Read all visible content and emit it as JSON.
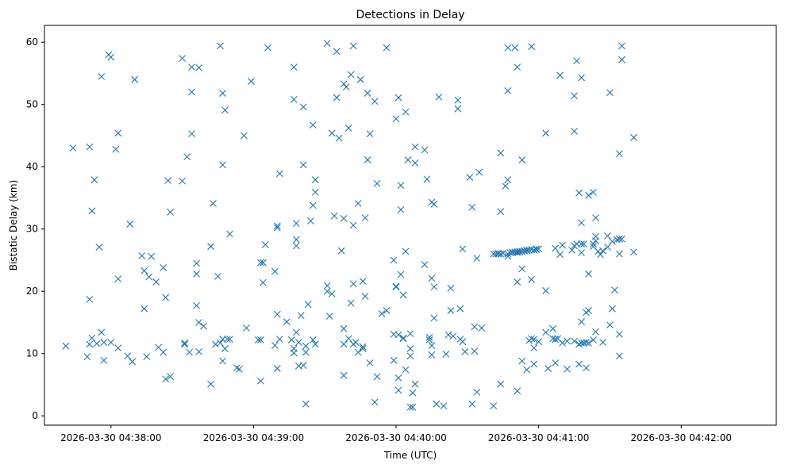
{
  "chart_data": {
    "type": "scatter",
    "title": "Detections in Delay",
    "xlabel": "Time (UTC)",
    "ylabel": "Bistatic Delay (km)",
    "marker": "x",
    "color": "#1f77b4",
    "grid": false,
    "x_unit": "time-of-day",
    "xlim": [
      "04:37:32",
      "04:42:40"
    ],
    "ylim": [
      -1.5,
      62.7
    ],
    "x_ticks": [
      {
        "value": "04:38:00",
        "label": "2026-03-30 04:38:00"
      },
      {
        "value": "04:39:00",
        "label": "2026-03-30 04:39:00"
      },
      {
        "value": "04:40:00",
        "label": "2026-03-30 04:40:00"
      },
      {
        "value": "04:41:00",
        "label": "2026-03-30 04:41:00"
      },
      {
        "value": "04:42:00",
        "label": "2026-03-30 04:42:00"
      }
    ],
    "y_ticks": [
      0,
      10,
      20,
      30,
      40,
      50,
      60
    ],
    "points": [
      [
        "04:37:41",
        11.2
      ],
      [
        "04:37:44",
        43.0
      ],
      [
        "04:37:50",
        9.5
      ],
      [
        "04:37:51",
        11.5
      ],
      [
        "04:37:51",
        43.2
      ],
      [
        "04:37:51",
        18.7
      ],
      [
        "04:37:52",
        12.5
      ],
      [
        "04:37:52",
        32.9
      ],
      [
        "04:37:53",
        37.9
      ],
      [
        "04:37:54",
        11.6
      ],
      [
        "04:37:55",
        27.1
      ],
      [
        "04:37:56",
        13.4
      ],
      [
        "04:37:56",
        54.5
      ],
      [
        "04:37:57",
        11.8
      ],
      [
        "04:37:57",
        8.9
      ],
      [
        "04:37:59",
        58.0
      ],
      [
        "04:38:00",
        57.6
      ],
      [
        "04:38:00",
        11.8
      ],
      [
        "04:38:02",
        42.8
      ],
      [
        "04:38:03",
        45.4
      ],
      [
        "04:38:03",
        22.0
      ],
      [
        "04:38:03",
        10.9
      ],
      [
        "04:38:07",
        9.6
      ],
      [
        "04:38:08",
        30.8
      ],
      [
        "04:38:09",
        8.7
      ],
      [
        "04:38:10",
        54.0
      ],
      [
        "04:38:13",
        25.7
      ],
      [
        "04:38:14",
        17.2
      ],
      [
        "04:38:14",
        23.3
      ],
      [
        "04:38:15",
        9.5
      ],
      [
        "04:38:16",
        22.3
      ],
      [
        "04:38:17",
        25.6
      ],
      [
        "04:38:19",
        21.5
      ],
      [
        "04:38:20",
        11.0
      ],
      [
        "04:38:22",
        10.2
      ],
      [
        "04:38:22",
        23.8
      ],
      [
        "04:38:23",
        19.0
      ],
      [
        "04:38:23",
        5.9
      ],
      [
        "04:38:24",
        37.8
      ],
      [
        "04:38:25",
        6.3
      ],
      [
        "04:38:25",
        32.7
      ],
      [
        "04:38:30",
        57.4
      ],
      [
        "04:38:30",
        37.7
      ],
      [
        "04:38:31",
        11.7
      ],
      [
        "04:38:31",
        11.5
      ],
      [
        "04:38:32",
        41.6
      ],
      [
        "04:38:33",
        10.2
      ],
      [
        "04:38:34",
        52.0
      ],
      [
        "04:38:34",
        56.0
      ],
      [
        "04:38:34",
        45.3
      ],
      [
        "04:38:36",
        17.7
      ],
      [
        "04:38:36",
        24.5
      ],
      [
        "04:38:36",
        22.8
      ],
      [
        "04:38:37",
        55.9
      ],
      [
        "04:38:37",
        15.0
      ],
      [
        "04:38:37",
        10.3
      ],
      [
        "04:38:39",
        14.4
      ],
      [
        "04:38:42",
        27.2
      ],
      [
        "04:38:42",
        5.1
      ],
      [
        "04:38:43",
        34.1
      ],
      [
        "04:38:44",
        11.5
      ],
      [
        "04:38:45",
        22.4
      ],
      [
        "04:38:46",
        59.4
      ],
      [
        "04:38:46",
        11.7
      ],
      [
        "04:38:47",
        51.8
      ],
      [
        "04:38:47",
        12.3
      ],
      [
        "04:38:47",
        8.8
      ],
      [
        "04:38:47",
        40.3
      ],
      [
        "04:38:48",
        49.1
      ],
      [
        "04:38:48",
        10.8
      ],
      [
        "04:38:49",
        12.3
      ],
      [
        "04:38:50",
        29.2
      ],
      [
        "04:38:50",
        12.3
      ],
      [
        "04:38:53",
        7.7
      ],
      [
        "04:38:54",
        7.5
      ],
      [
        "04:38:56",
        45.0
      ],
      [
        "04:38:57",
        14.1
      ],
      [
        "04:38:59",
        53.7
      ],
      [
        "04:39:02",
        12.2
      ],
      [
        "04:39:03",
        24.6
      ],
      [
        "04:39:03",
        5.6
      ],
      [
        "04:39:03",
        12.2
      ],
      [
        "04:39:04",
        21.4
      ],
      [
        "04:39:04",
        24.6
      ],
      [
        "04:39:04",
        24.6
      ],
      [
        "04:39:05",
        27.5
      ],
      [
        "04:39:06",
        59.1
      ],
      [
        "04:39:09",
        11.3
      ],
      [
        "04:39:09",
        23.2
      ],
      [
        "04:39:10",
        30.5
      ],
      [
        "04:39:10",
        30.2
      ],
      [
        "04:39:10",
        16.3
      ],
      [
        "04:39:10",
        7.6
      ],
      [
        "04:39:11",
        12.3
      ],
      [
        "04:39:11",
        38.9
      ],
      [
        "04:39:14",
        15.1
      ],
      [
        "04:39:16",
        12.2
      ],
      [
        "04:39:17",
        56.0
      ],
      [
        "04:39:17",
        10.8
      ],
      [
        "04:39:17",
        50.8
      ],
      [
        "04:39:17",
        10.1
      ],
      [
        "04:39:18",
        27.3
      ],
      [
        "04:39:18",
        28.3
      ],
      [
        "04:39:18",
        30.9
      ],
      [
        "04:39:18",
        13.4
      ],
      [
        "04:39:19",
        11.8
      ],
      [
        "04:39:19",
        8.0
      ],
      [
        "04:39:20",
        16.1
      ],
      [
        "04:39:21",
        49.6
      ],
      [
        "04:39:21",
        8.1
      ],
      [
        "04:39:21",
        40.3
      ],
      [
        "04:39:22",
        11.2
      ],
      [
        "04:39:22",
        1.9
      ],
      [
        "04:39:22",
        10.2
      ],
      [
        "04:39:23",
        17.9
      ],
      [
        "04:39:24",
        31.3
      ],
      [
        "04:39:25",
        46.7
      ],
      [
        "04:39:25",
        33.8
      ],
      [
        "04:39:25",
        12.2
      ],
      [
        "04:39:26",
        11.5
      ],
      [
        "04:39:26",
        35.9
      ],
      [
        "04:39:26",
        37.9
      ],
      [
        "04:39:31",
        59.8
      ],
      [
        "04:39:31",
        20.0
      ],
      [
        "04:39:31",
        20.9
      ],
      [
        "04:39:32",
        16.0
      ],
      [
        "04:39:33",
        19.6
      ],
      [
        "04:39:33",
        45.4
      ],
      [
        "04:39:34",
        32.1
      ],
      [
        "04:39:35",
        58.5
      ],
      [
        "04:39:35",
        51.1
      ],
      [
        "04:39:36",
        44.6
      ],
      [
        "04:39:37",
        26.5
      ],
      [
        "04:39:38",
        31.7
      ],
      [
        "04:39:38",
        14.0
      ],
      [
        "04:39:38",
        53.3
      ],
      [
        "04:39:38",
        6.5
      ],
      [
        "04:39:38",
        11.5
      ],
      [
        "04:39:39",
        52.8
      ],
      [
        "04:39:40",
        46.2
      ],
      [
        "04:39:40",
        12.4
      ],
      [
        "04:39:41",
        18.1
      ],
      [
        "04:39:41",
        54.8
      ],
      [
        "04:39:42",
        21.2
      ],
      [
        "04:39:42",
        59.4
      ],
      [
        "04:39:42",
        11.5
      ],
      [
        "04:39:42",
        30.6
      ],
      [
        "04:39:43",
        11.8
      ],
      [
        "04:39:44",
        10.2
      ],
      [
        "04:39:44",
        34.1
      ],
      [
        "04:39:45",
        54.0
      ],
      [
        "04:39:46",
        11.1
      ],
      [
        "04:39:46",
        21.6
      ],
      [
        "04:39:46",
        10.8
      ],
      [
        "04:39:47",
        19.2
      ],
      [
        "04:39:47",
        31.8
      ],
      [
        "04:39:48",
        51.8
      ],
      [
        "04:39:48",
        41.1
      ],
      [
        "04:39:49",
        8.5
      ],
      [
        "04:39:49",
        45.3
      ],
      [
        "04:39:51",
        50.5
      ],
      [
        "04:39:51",
        2.2
      ],
      [
        "04:39:52",
        37.3
      ],
      [
        "04:39:52",
        6.3
      ],
      [
        "04:39:54",
        16.4
      ],
      [
        "04:39:56",
        16.9
      ],
      [
        "04:39:56",
        59.1
      ],
      [
        "04:39:59",
        25.0
      ],
      [
        "04:39:59",
        13.1
      ],
      [
        "04:39:59",
        8.9
      ],
      [
        "04:40:00",
        47.7
      ],
      [
        "04:40:00",
        20.7
      ],
      [
        "04:40:00",
        20.8
      ],
      [
        "04:40:01",
        51.1
      ],
      [
        "04:40:01",
        4.1
      ],
      [
        "04:40:01",
        13.0
      ],
      [
        "04:40:01",
        6.1
      ],
      [
        "04:40:02",
        37.0
      ],
      [
        "04:40:02",
        33.1
      ],
      [
        "04:40:02",
        22.7
      ],
      [
        "04:40:03",
        12.5
      ],
      [
        "04:40:03",
        12.4
      ],
      [
        "04:40:03",
        19.4
      ],
      [
        "04:40:04",
        48.8
      ],
      [
        "04:40:04",
        7.4
      ],
      [
        "04:40:04",
        26.4
      ],
      [
        "04:40:05",
        41.1
      ],
      [
        "04:40:06",
        9.6
      ],
      [
        "04:40:06",
        13.2
      ],
      [
        "04:40:06",
        10.8
      ],
      [
        "04:40:06",
        1.4
      ],
      [
        "04:40:07",
        3.7
      ],
      [
        "04:40:07",
        1.4
      ],
      [
        "04:40:08",
        43.2
      ],
      [
        "04:40:08",
        40.6
      ],
      [
        "04:40:08",
        5.1
      ],
      [
        "04:40:12",
        42.7
      ],
      [
        "04:40:12",
        24.3
      ],
      [
        "04:40:13",
        38.0
      ],
      [
        "04:40:14",
        12.6
      ],
      [
        "04:40:14",
        12.2
      ],
      [
        "04:40:15",
        22.1
      ],
      [
        "04:40:15",
        9.8
      ],
      [
        "04:40:15",
        11.3
      ],
      [
        "04:40:15",
        34.3
      ],
      [
        "04:40:16",
        20.7
      ],
      [
        "04:40:16",
        15.7
      ],
      [
        "04:40:16",
        34.0
      ],
      [
        "04:40:17",
        1.9
      ],
      [
        "04:40:18",
        51.2
      ],
      [
        "04:40:20",
        1.6
      ],
      [
        "04:40:21",
        9.9
      ],
      [
        "04:40:22",
        13.0
      ],
      [
        "04:40:23",
        16.9
      ],
      [
        "04:40:23",
        20.5
      ],
      [
        "04:40:24",
        12.8
      ],
      [
        "04:40:26",
        50.7
      ],
      [
        "04:40:26",
        49.3
      ],
      [
        "04:40:27",
        17.2
      ],
      [
        "04:40:27",
        12.3
      ],
      [
        "04:40:28",
        11.9
      ],
      [
        "04:40:28",
        26.8
      ],
      [
        "04:40:29",
        10.3
      ],
      [
        "04:40:31",
        38.3
      ],
      [
        "04:40:32",
        1.9
      ],
      [
        "04:40:32",
        33.5
      ],
      [
        "04:40:33",
        14.3
      ],
      [
        "04:40:33",
        10.4
      ],
      [
        "04:40:34",
        25.3
      ],
      [
        "04:40:34",
        3.8
      ],
      [
        "04:40:35",
        39.1
      ],
      [
        "04:40:36",
        14.1
      ],
      [
        "04:40:41",
        1.6
      ],
      [
        "04:40:41",
        26.0
      ],
      [
        "04:40:42",
        26.0
      ],
      [
        "04:40:43",
        26.1
      ],
      [
        "04:40:43",
        26.0
      ],
      [
        "04:40:44",
        26.0
      ],
      [
        "04:40:44",
        32.8
      ],
      [
        "04:40:44",
        42.2
      ],
      [
        "04:40:44",
        5.1
      ],
      [
        "04:40:45",
        26.1
      ],
      [
        "04:40:46",
        36.9
      ],
      [
        "04:40:47",
        26.0
      ],
      [
        "04:40:47",
        25.6
      ],
      [
        "04:40:47",
        52.2
      ],
      [
        "04:40:47",
        37.9
      ],
      [
        "04:40:47",
        59.1
      ],
      [
        "04:40:48",
        26.2
      ],
      [
        "04:40:49",
        26.3
      ],
      [
        "04:40:49",
        26.2
      ],
      [
        "04:40:50",
        26.3
      ],
      [
        "04:40:50",
        59.1
      ],
      [
        "04:40:51",
        26.4
      ],
      [
        "04:40:51",
        56.0
      ],
      [
        "04:40:51",
        26.2
      ],
      [
        "04:40:51",
        4.0
      ],
      [
        "04:40:51",
        21.5
      ],
      [
        "04:40:52",
        26.3
      ],
      [
        "04:40:52",
        26.4
      ],
      [
        "04:40:53",
        23.6
      ],
      [
        "04:40:53",
        26.4
      ],
      [
        "04:40:53",
        41.1
      ],
      [
        "04:40:53",
        8.8
      ],
      [
        "04:40:54",
        26.5
      ],
      [
        "04:40:54",
        26.5
      ],
      [
        "04:40:55",
        26.5
      ],
      [
        "04:40:55",
        26.6
      ],
      [
        "04:40:55",
        7.4
      ],
      [
        "04:40:56",
        26.6
      ],
      [
        "04:40:56",
        12.1
      ],
      [
        "04:40:57",
        26.7
      ],
      [
        "04:40:57",
        59.3
      ],
      [
        "04:40:57",
        12.4
      ],
      [
        "04:40:57",
        21.9
      ],
      [
        "04:40:58",
        26.6
      ],
      [
        "04:40:58",
        12.3
      ],
      [
        "04:40:58",
        8.3
      ],
      [
        "04:40:58",
        10.9
      ],
      [
        "04:40:59",
        26.8
      ],
      [
        "04:40:59",
        26.7
      ],
      [
        "04:41:00",
        26.8
      ],
      [
        "04:41:00",
        11.9
      ],
      [
        "04:41:03",
        13.4
      ],
      [
        "04:41:03",
        20.1
      ],
      [
        "04:41:03",
        45.4
      ],
      [
        "04:41:04",
        7.6
      ],
      [
        "04:41:06",
        14.0
      ],
      [
        "04:41:06",
        12.4
      ],
      [
        "04:41:07",
        12.3
      ],
      [
        "04:41:07",
        26.9
      ],
      [
        "04:41:07",
        8.5
      ],
      [
        "04:41:07",
        12.3
      ],
      [
        "04:41:08",
        12.4
      ],
      [
        "04:41:09",
        25.9
      ],
      [
        "04:41:09",
        54.7
      ],
      [
        "04:41:10",
        11.7
      ],
      [
        "04:41:10",
        27.4
      ],
      [
        "04:41:12",
        7.5
      ],
      [
        "04:41:12",
        12.0
      ],
      [
        "04:41:14",
        26.6
      ],
      [
        "04:41:15",
        51.4
      ],
      [
        "04:41:15",
        45.7
      ],
      [
        "04:41:15",
        27.3
      ],
      [
        "04:41:15",
        12.0
      ],
      [
        "04:41:16",
        57.0
      ],
      [
        "04:41:16",
        27.6
      ],
      [
        "04:41:17",
        11.5
      ],
      [
        "04:41:17",
        8.3
      ],
      [
        "04:41:17",
        35.8
      ],
      [
        "04:41:18",
        27.6
      ],
      [
        "04:41:18",
        11.7
      ],
      [
        "04:41:18",
        31.0
      ],
      [
        "04:41:18",
        15.1
      ],
      [
        "04:41:18",
        54.3
      ],
      [
        "04:41:18",
        26.2
      ],
      [
        "04:41:19",
        27.6
      ],
      [
        "04:41:19",
        11.7
      ],
      [
        "04:41:19",
        11.7
      ],
      [
        "04:41:20",
        7.7
      ],
      [
        "04:41:20",
        16.6
      ],
      [
        "04:41:20",
        11.8
      ],
      [
        "04:41:21",
        35.4
      ],
      [
        "04:41:21",
        22.8
      ],
      [
        "04:41:21",
        16.9
      ],
      [
        "04:41:21",
        11.7
      ],
      [
        "04:41:23",
        35.9
      ],
      [
        "04:41:23",
        27.6
      ],
      [
        "04:41:23",
        27.2
      ],
      [
        "04:41:23",
        12.2
      ],
      [
        "04:41:24",
        31.8
      ],
      [
        "04:41:24",
        28.8
      ],
      [
        "04:41:24",
        13.5
      ],
      [
        "04:41:24",
        28.1
      ],
      [
        "04:41:25",
        26.4
      ],
      [
        "04:41:26",
        25.9
      ],
      [
        "04:41:27",
        11.8
      ],
      [
        "04:41:27",
        26.5
      ],
      [
        "04:41:29",
        28.9
      ],
      [
        "04:41:29",
        27.1
      ],
      [
        "04:41:30",
        14.6
      ],
      [
        "04:41:30",
        51.9
      ],
      [
        "04:41:31",
        17.2
      ],
      [
        "04:41:31",
        28.0
      ],
      [
        "04:41:32",
        20.2
      ],
      [
        "04:41:33",
        28.3
      ],
      [
        "04:41:34",
        28.4
      ],
      [
        "04:41:34",
        28.4
      ],
      [
        "04:41:34",
        26.0
      ],
      [
        "04:41:34",
        42.1
      ],
      [
        "04:41:34",
        9.6
      ],
      [
        "04:41:34",
        13.1
      ],
      [
        "04:41:35",
        59.4
      ],
      [
        "04:41:35",
        57.2
      ],
      [
        "04:41:35",
        28.4
      ],
      [
        "04:41:40",
        44.7
      ],
      [
        "04:41:40",
        26.3
      ]
    ]
  }
}
